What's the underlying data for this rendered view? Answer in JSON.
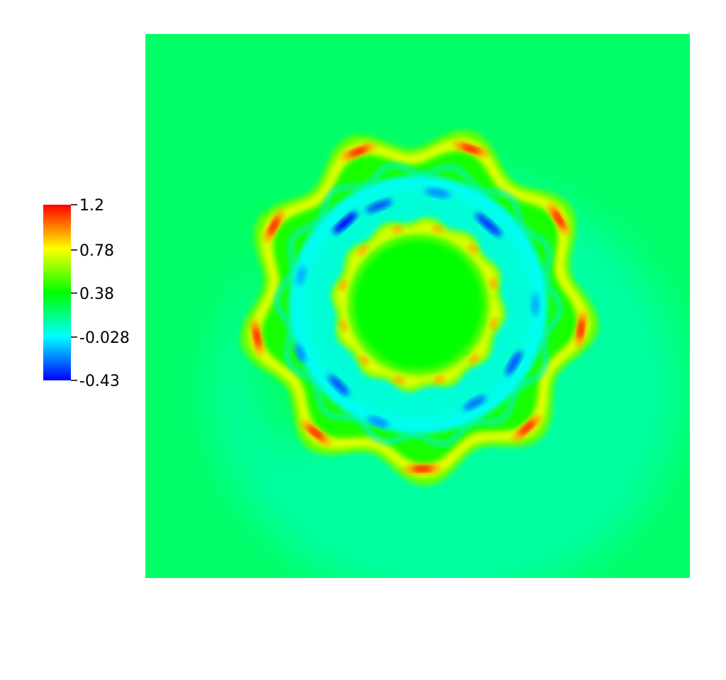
{
  "chart_data": {
    "type": "heatmap",
    "title": "",
    "colormap": [
      "#0000ff",
      "#00ffff",
      "#00ff00",
      "#ffff00",
      "#ff0000"
    ],
    "colorbar": {
      "min": -0.43,
      "max": 1.2,
      "ticks": [
        {
          "value": 1.2,
          "label": "1.2"
        },
        {
          "value": 0.78,
          "label": "0.78"
        },
        {
          "value": 0.38,
          "label": "0.38"
        },
        {
          "value": -0.028,
          "label": "-0.028"
        },
        {
          "value": -0.43,
          "label": "-0.43"
        }
      ]
    },
    "field_description_values": {
      "background_value": 0.22,
      "inner_disk_value": 0.38,
      "inner_ring_value": 0.75,
      "annulus_trough_value": -0.028,
      "outer_ring_value": 0.75,
      "outer_ring_peak_value": 1.2,
      "min_spot_value": -0.43,
      "outer_ring_lobes": 9,
      "inner_ring_lobes": 12
    }
  }
}
